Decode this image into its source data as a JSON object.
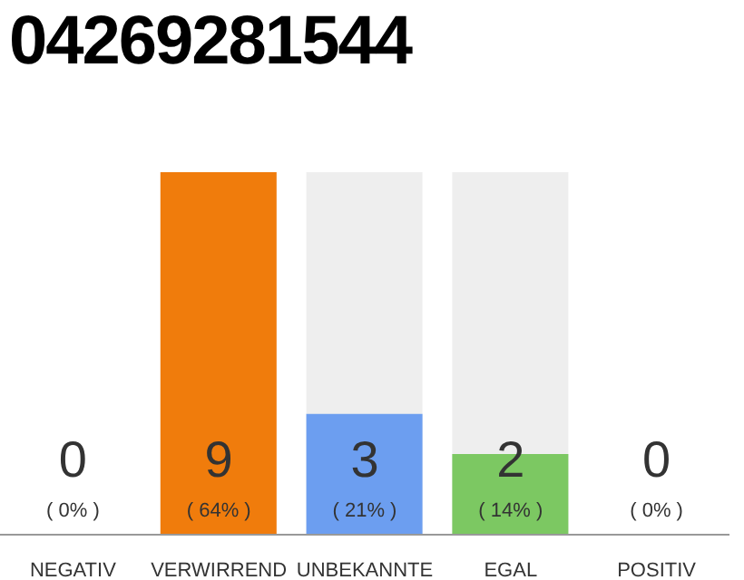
{
  "chart_data": {
    "type": "bar",
    "title": "04269281544",
    "categories": [
      "NEGATIV",
      "VERWIRREND",
      "UNBEKANNTE",
      "EGAL",
      "POSITIV"
    ],
    "values": [
      0,
      9,
      3,
      2,
      0
    ],
    "colors": [
      "#cccccc",
      "#f07c0c",
      "#6c9ef0",
      "#7cc862",
      "#cccccc"
    ],
    "value_labels": [
      "0\n( 0% )",
      "9\n( 64% )",
      "3\n( 21% )",
      "2\n( 14% )",
      "0\n( 0% )"
    ],
    "grid": false,
    "legend": false
  }
}
